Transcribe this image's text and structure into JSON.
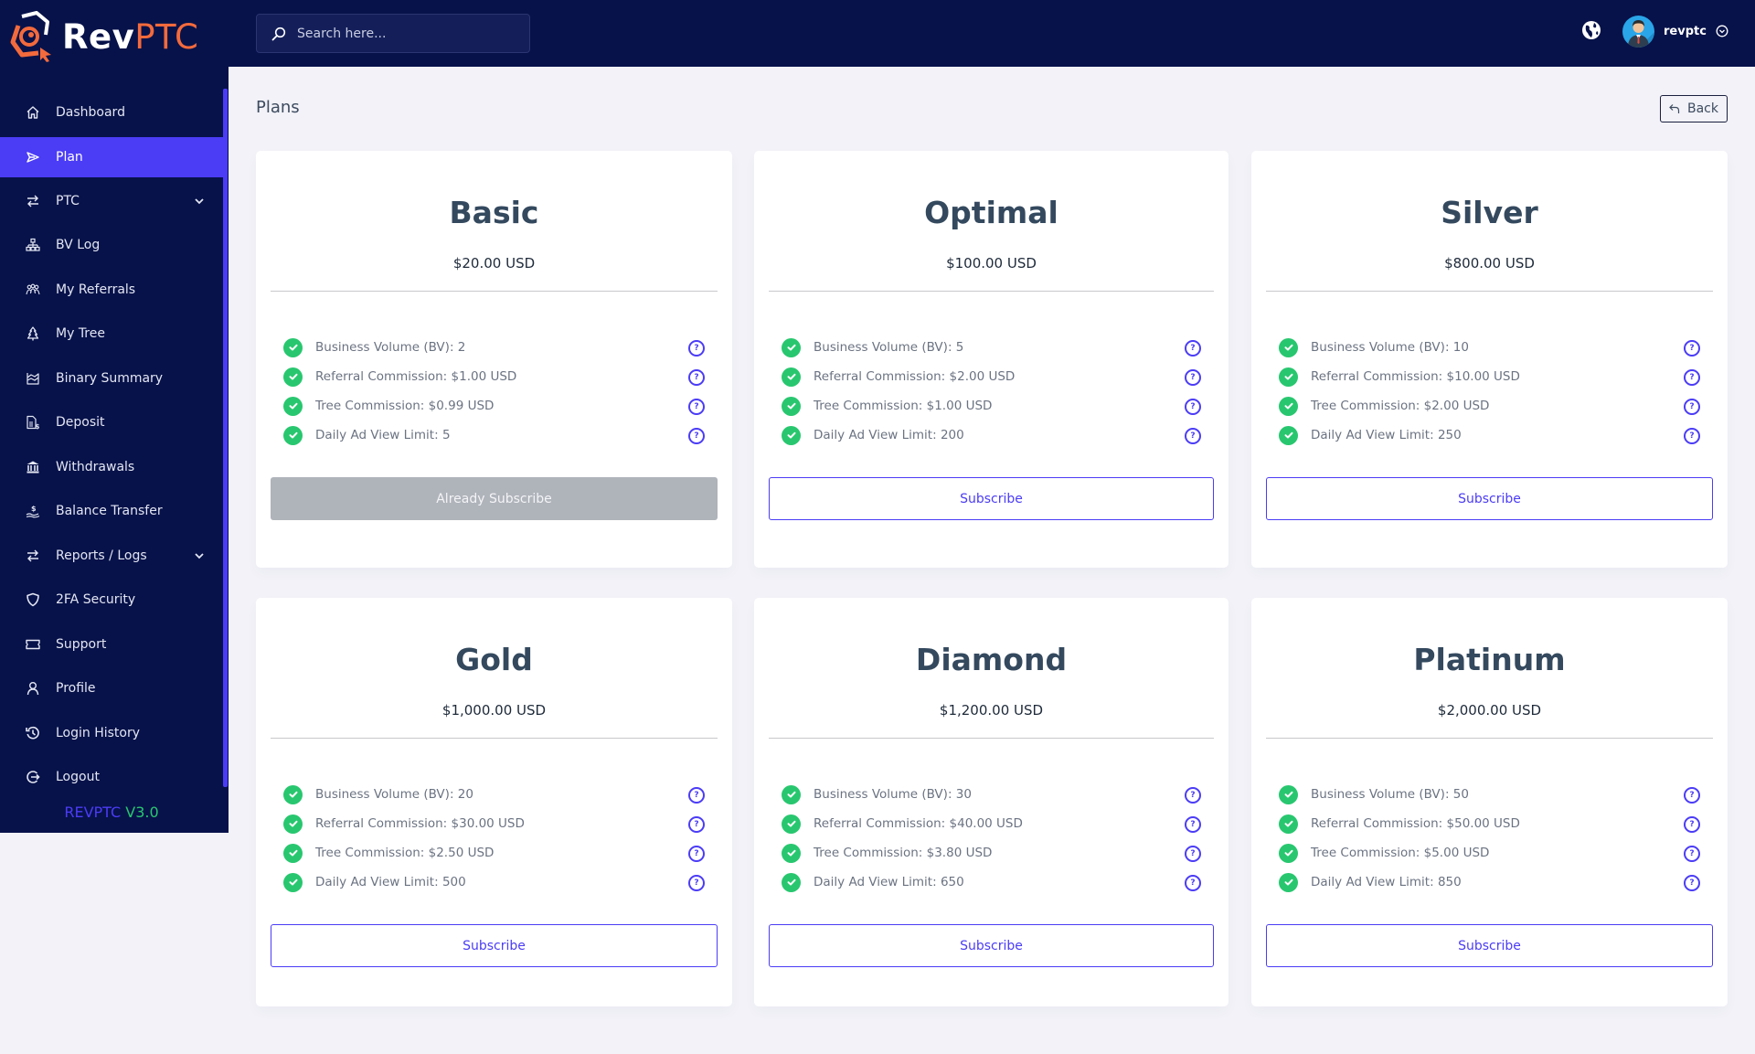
{
  "brand": {
    "name_part1": "Rev",
    "name_part2": "PTC",
    "accent": "#f36a3c",
    "primary": "#4b3cf6",
    "nav_bg": "#07124a"
  },
  "header": {
    "search_placeholder": "Search here...",
    "language_icon": "globe-icon",
    "username": "revptc"
  },
  "sidebar": {
    "items": [
      {
        "label": "Dashboard",
        "icon": "home-icon",
        "active": false
      },
      {
        "label": "Plan",
        "icon": "send-icon",
        "active": true
      },
      {
        "label": "PTC",
        "icon": "arrows-swap-icon",
        "active": false,
        "has_submenu": true
      },
      {
        "label": "BV Log",
        "icon": "sitemap-icon",
        "active": false
      },
      {
        "label": "My Referrals",
        "icon": "users-icon",
        "active": false
      },
      {
        "label": "My Tree",
        "icon": "tree-icon",
        "active": false
      },
      {
        "label": "Binary Summary",
        "icon": "chart-area-icon",
        "active": false
      },
      {
        "label": "Deposit",
        "icon": "file-dollar-icon",
        "active": false
      },
      {
        "label": "Withdrawals",
        "icon": "bank-icon",
        "active": false
      },
      {
        "label": "Balance Transfer",
        "icon": "hand-dollar-icon",
        "active": false
      },
      {
        "label": "Reports / Logs",
        "icon": "arrows-swap-icon",
        "active": false,
        "has_submenu": true
      },
      {
        "label": "2FA Security",
        "icon": "shield-icon",
        "active": false
      },
      {
        "label": "Support",
        "icon": "ticket-icon",
        "active": false
      },
      {
        "label": "Profile",
        "icon": "user-icon",
        "active": false
      },
      {
        "label": "Login History",
        "icon": "history-icon",
        "active": false
      },
      {
        "label": "Logout",
        "icon": "logout-icon",
        "active": false
      }
    ],
    "version_prefix": "REVPTC",
    "version_number": "V3.0"
  },
  "page": {
    "title": "Plans",
    "back_label": "Back"
  },
  "plans": [
    {
      "name": "Basic",
      "price": "$20.00 USD",
      "features": [
        "Business Volume (BV): 2",
        "Referral Commission: $1.00 USD",
        "Tree Commission: $0.99 USD",
        "Daily Ad View Limit: 5"
      ],
      "button": "Already Subscribe",
      "subscribed": true
    },
    {
      "name": "Optimal",
      "price": "$100.00 USD",
      "features": [
        "Business Volume (BV): 5",
        "Referral Commission: $2.00 USD",
        "Tree Commission: $1.00 USD",
        "Daily Ad View Limit: 200"
      ],
      "button": "Subscribe",
      "subscribed": false
    },
    {
      "name": "Silver",
      "price": "$800.00 USD",
      "features": [
        "Business Volume (BV): 10",
        "Referral Commission: $10.00 USD",
        "Tree Commission: $2.00 USD",
        "Daily Ad View Limit: 250"
      ],
      "button": "Subscribe",
      "subscribed": false
    },
    {
      "name": "Gold",
      "price": "$1,000.00 USD",
      "features": [
        "Business Volume (BV): 20",
        "Referral Commission: $30.00 USD",
        "Tree Commission: $2.50 USD",
        "Daily Ad View Limit: 500"
      ],
      "button": "Subscribe",
      "subscribed": false
    },
    {
      "name": "Diamond",
      "price": "$1,200.00 USD",
      "features": [
        "Business Volume (BV): 30",
        "Referral Commission: $40.00 USD",
        "Tree Commission: $3.80 USD",
        "Daily Ad View Limit: 650"
      ],
      "button": "Subscribe",
      "subscribed": false
    },
    {
      "name": "Platinum",
      "price": "$2,000.00 USD",
      "features": [
        "Business Volume (BV): 50",
        "Referral Commission: $50.00 USD",
        "Tree Commission: $5.00 USD",
        "Daily Ad View Limit: 850"
      ],
      "button": "Subscribe",
      "subscribed": false
    }
  ],
  "feature_help_icon": "question-circle-icon",
  "feature_check_icon": "check-circle-icon"
}
